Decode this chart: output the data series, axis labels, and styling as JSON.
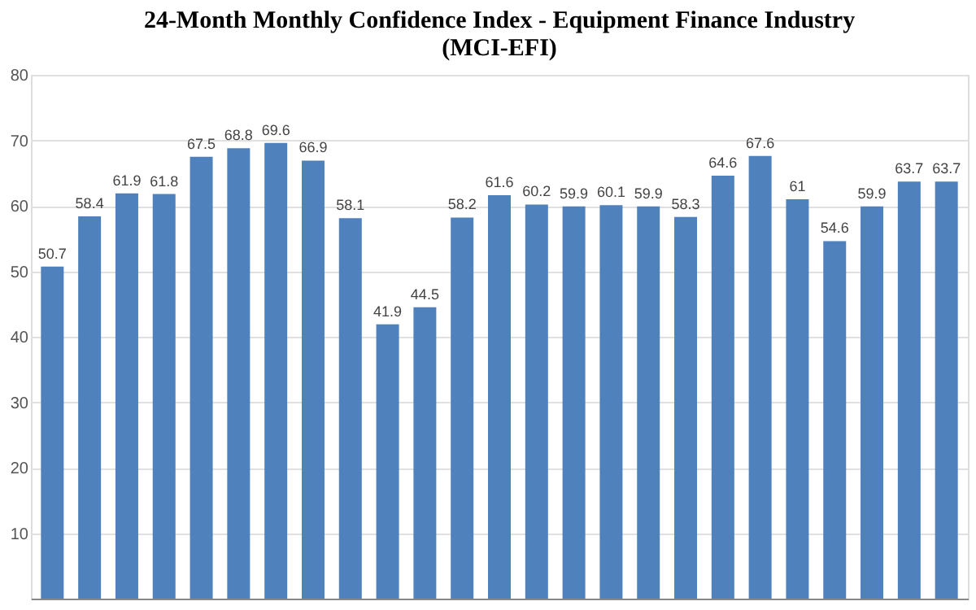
{
  "chart_data": {
    "type": "bar",
    "title": [
      "24-Month Monthly Confidence Index - Equipment Finance Industry",
      "(MCI-EFI)"
    ],
    "categories": [
      null,
      null,
      null,
      null,
      null,
      null,
      null,
      null,
      null,
      null,
      null,
      null,
      null,
      null,
      null,
      null,
      null,
      null,
      null,
      null,
      null,
      null,
      null,
      null,
      null
    ],
    "values": [
      50.7,
      58.4,
      61.9,
      61.8,
      67.5,
      68.8,
      69.6,
      66.9,
      58.1,
      41.9,
      44.5,
      58.2,
      61.6,
      60.2,
      59.9,
      60.1,
      59.9,
      58.3,
      64.6,
      67.6,
      61,
      54.6,
      59.9,
      63.7,
      63.7
    ],
    "value_labels": [
      "50.7",
      "58.4",
      "61.9",
      "61.8",
      "67.5",
      "68.8",
      "69.6",
      "66.9",
      "58.1",
      "41.9",
      "44.5",
      "58.2",
      "61.6",
      "60.2",
      "59.9",
      "60.1",
      "59.9",
      "58.3",
      "64.6",
      "67.6",
      "61",
      "54.6",
      "59.9",
      "63.7",
      "63.7"
    ],
    "color": "#4f81bd",
    "ylim": [
      0,
      80
    ],
    "yticks": [
      10,
      20,
      30,
      40,
      50,
      60,
      70,
      80
    ],
    "grid": "y"
  }
}
